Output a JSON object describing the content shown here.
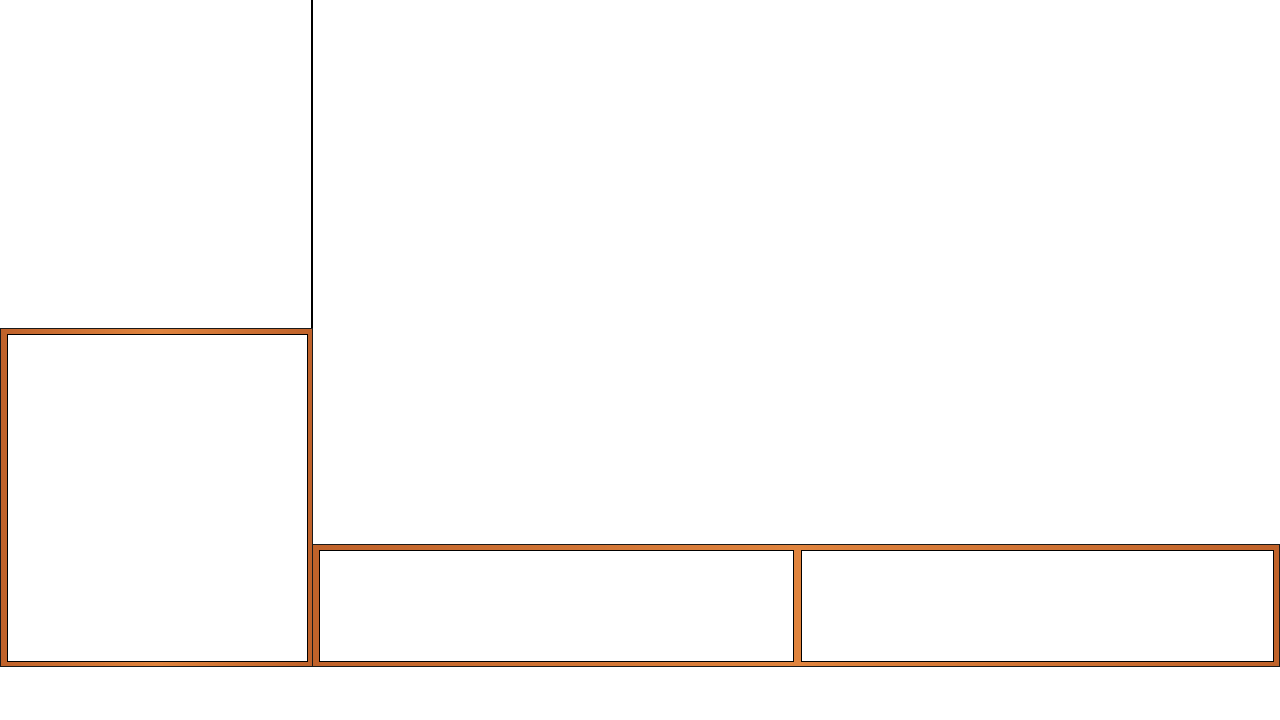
{
  "colors": {
    "frame": "#c0622a",
    "frame_highlight": "#e0843e",
    "border": "#000000",
    "background": "#ffffff"
  },
  "panels": {
    "left_slot_label": "",
    "bottom_slots": [
      {
        "label": ""
      },
      {
        "label": ""
      }
    ]
  }
}
